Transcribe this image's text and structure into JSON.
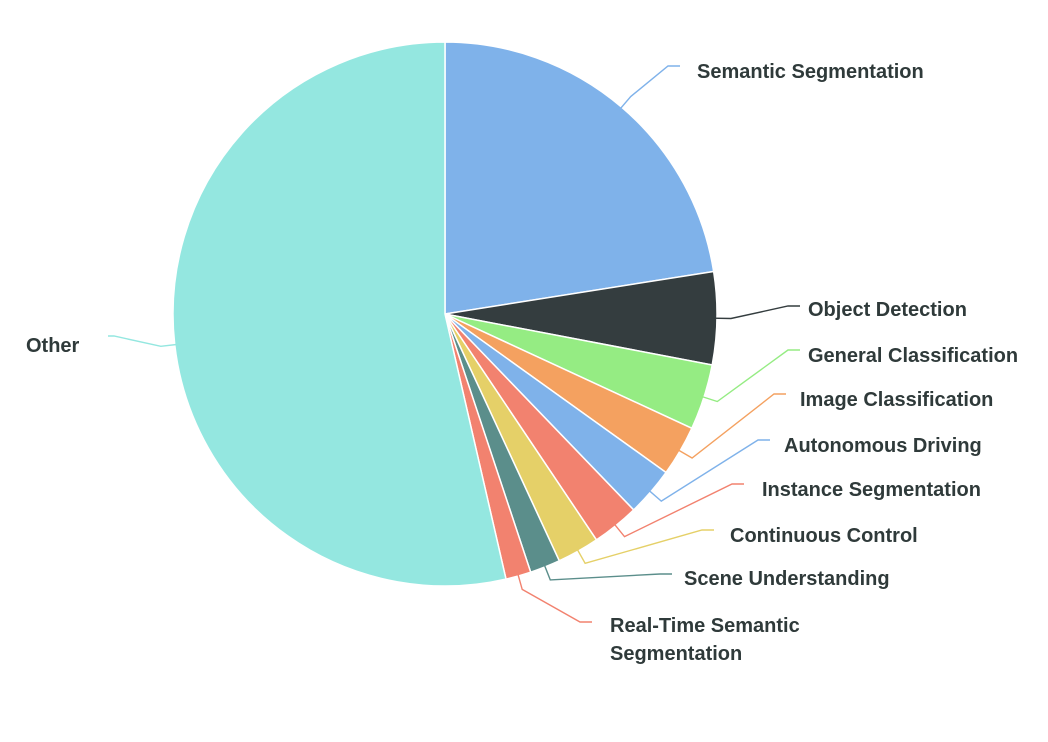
{
  "chart_data": {
    "type": "pie",
    "title": "",
    "start_angle_deg": 0,
    "direction": "clockwise",
    "slices": [
      {
        "label": "Semantic Segmentation",
        "value": 22.5,
        "color": "#7fb2ea"
      },
      {
        "label": "Object Detection",
        "value": 5.5,
        "color": "#343d3f"
      },
      {
        "label": "General Classification",
        "value": 3.9,
        "color": "#95ec83"
      },
      {
        "label": "Image Classification",
        "value": 3.0,
        "color": "#f4a160"
      },
      {
        "label": "Autonomous Driving",
        "value": 2.9,
        "color": "#7fb2ea"
      },
      {
        "label": "Instance Segmentation",
        "value": 2.8,
        "color": "#f2826f"
      },
      {
        "label": "Continuous Control",
        "value": 2.5,
        "color": "#e5d068"
      },
      {
        "label": "Scene Understanding",
        "value": 1.8,
        "color": "#5b8e8b"
      },
      {
        "label": "Real-Time Semantic Segmentation",
        "value": 1.5,
        "color": "#f2826f"
      },
      {
        "label": "Other",
        "value": 53.6,
        "color": "#94e7e0"
      }
    ]
  }
}
